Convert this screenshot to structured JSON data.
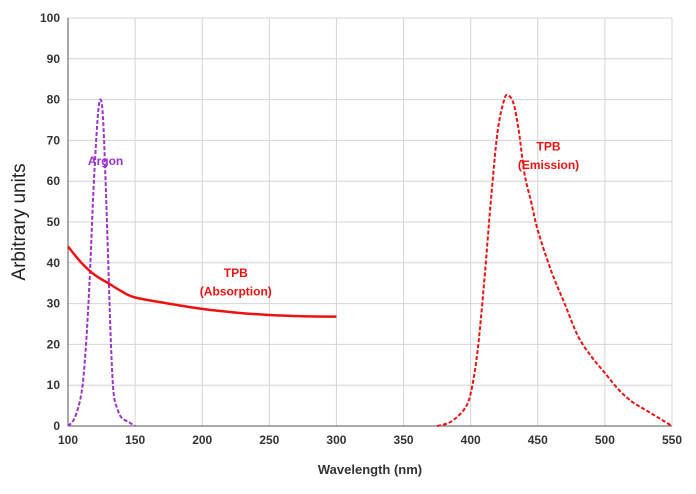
{
  "chart_data": {
    "type": "line",
    "xlabel": "Wavelength (nm)",
    "ylabel": "Arbitrary units",
    "xlim": [
      100,
      550
    ],
    "ylim": [
      0,
      100
    ],
    "x_ticks": [
      "100",
      "150",
      "200",
      "250",
      "300",
      "350",
      "400",
      "450",
      "500",
      "550"
    ],
    "y_ticks": [
      "0",
      "10",
      "20",
      "30",
      "40",
      "50",
      "60",
      "70",
      "80",
      "90",
      "100"
    ],
    "grid": true,
    "series": [
      {
        "name": "Argon",
        "color": "#9933cc",
        "dash": "dashed",
        "x": [
          100,
          105,
          110,
          113,
          116,
          119,
          122,
          124,
          126,
          128,
          130,
          132,
          134,
          137,
          140,
          145,
          150
        ],
        "y": [
          0,
          2,
          8,
          18,
          35,
          58,
          75,
          80,
          76,
          60,
          40,
          20,
          8,
          4,
          2,
          1,
          0
        ]
      },
      {
        "name": "TPB (Absorption)",
        "color": "#ee1111",
        "dash": "solid",
        "x": [
          100,
          110,
          120,
          130,
          140,
          150,
          175,
          200,
          225,
          250,
          275,
          300
        ],
        "y": [
          44,
          40,
          37,
          35,
          33,
          31.5,
          30,
          28.7,
          27.8,
          27.2,
          26.9,
          26.8
        ]
      },
      {
        "name": "TPB (Emission)",
        "color": "#ee1111",
        "dash": "dashed",
        "x": [
          375,
          385,
          395,
          400,
          405,
          410,
          415,
          420,
          425,
          428,
          432,
          436,
          440,
          445,
          450,
          460,
          470,
          480,
          490,
          500,
          510,
          520,
          530,
          540,
          550
        ],
        "y": [
          0,
          1,
          4,
          8,
          18,
          35,
          55,
          72,
          80,
          81,
          79,
          72,
          62,
          55,
          48,
          38,
          30,
          22,
          17,
          13,
          9,
          6,
          4,
          2,
          0
        ]
      }
    ],
    "annotations": [
      {
        "text": "Argon",
        "x": 128,
        "y": 64,
        "color": "#9933cc"
      },
      {
        "text": "TPB",
        "x": 225,
        "y": 36.5,
        "color": "#ee1111"
      },
      {
        "text": "(Absorption)",
        "x": 225,
        "y": 32,
        "color": "#ee1111"
      },
      {
        "text": "TPB",
        "x": 458,
        "y": 67.5,
        "color": "#ee1111"
      },
      {
        "text": "(Emission)",
        "x": 458,
        "y": 63,
        "color": "#ee1111"
      }
    ]
  }
}
